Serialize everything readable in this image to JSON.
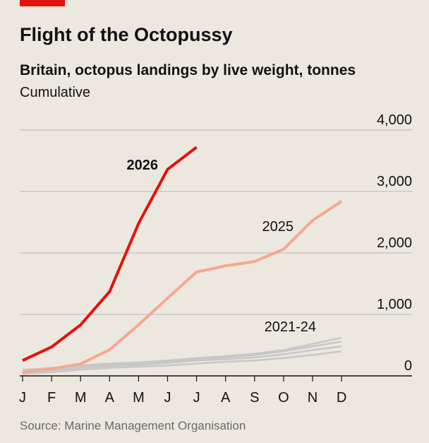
{
  "chart_data": {
    "type": "line",
    "title": "Flight of the Octopussy",
    "subtitle": "Britain, octopus landings by live weight, tonnes",
    "note": "Cumulative",
    "source": "Source: Marine Management Organisation",
    "categories": [
      "J",
      "F",
      "M",
      "A",
      "M",
      "J",
      "J",
      "A",
      "S",
      "O",
      "N",
      "D"
    ],
    "series": [
      {
        "name": "2026",
        "color": "#e3120b",
        "values": [
          250,
          470,
          830,
          1370,
          2480,
          3360,
          3720,
          null,
          null,
          null,
          null,
          null
        ]
      },
      {
        "name": "2025",
        "color": "#f5a88e",
        "values": [
          57,
          115,
          195,
          425,
          830,
          1265,
          1690,
          1790,
          1860,
          2060,
          2530,
          2840
        ]
      },
      {
        "name": "2021-24",
        "color": "#c7c7c7",
        "values": [
          100,
          130,
          170,
          200,
          220,
          250,
          290,
          320,
          360,
          420,
          520,
          620
        ]
      },
      {
        "color": "#c7c7c7",
        "values": [
          80,
          110,
          150,
          180,
          200,
          230,
          270,
          300,
          340,
          400,
          480,
          560
        ]
      },
      {
        "color": "#c7c7c7",
        "values": [
          60,
          90,
          130,
          160,
          180,
          210,
          250,
          270,
          300,
          350,
          420,
          480
        ]
      },
      {
        "color": "#c7c7c7",
        "values": [
          30,
          60,
          100,
          130,
          150,
          170,
          200,
          230,
          250,
          290,
          340,
          400
        ]
      }
    ],
    "ylim": [
      0,
      4000
    ],
    "yticks": [
      0,
      {
        "value": 1000,
        "label": "1,000"
      },
      {
        "value": 2000,
        "label": "2,000"
      },
      {
        "value": 3000,
        "label": "3,000"
      },
      {
        "value": 4000,
        "label": "4,000"
      }
    ],
    "grid": true
  }
}
